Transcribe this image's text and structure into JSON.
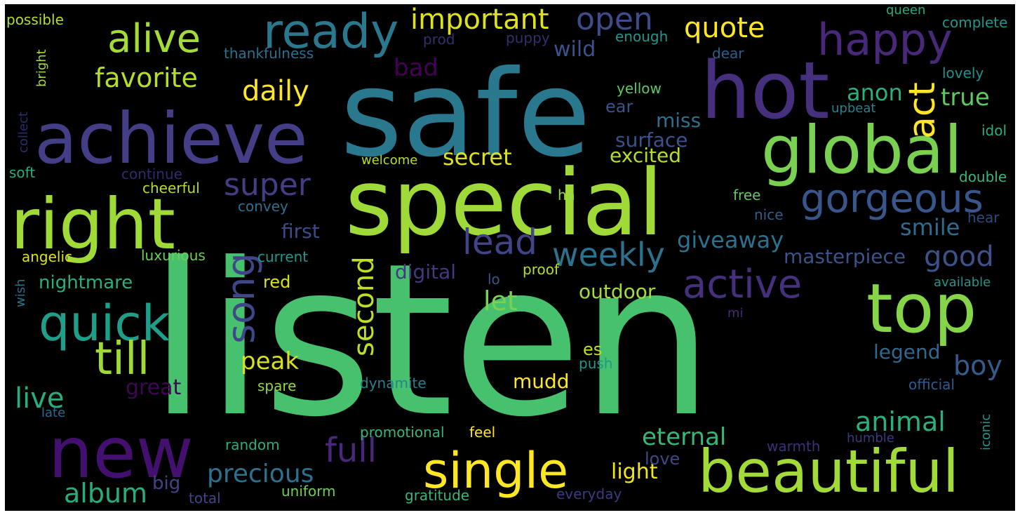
{
  "wordcloud": {
    "background": "#000000",
    "colormap": "viridis",
    "words": [
      {
        "text": "listen",
        "color": "#47c16e"
      },
      {
        "text": "safe",
        "color": "#2a788e"
      },
      {
        "text": "special",
        "color": "#a0da39"
      },
      {
        "text": "hot",
        "color": "#46307e"
      },
      {
        "text": "achieve",
        "color": "#433e85"
      },
      {
        "text": "right",
        "color": "#a0da39"
      },
      {
        "text": "global",
        "color": "#7ad151"
      },
      {
        "text": "top",
        "color": "#86d549"
      },
      {
        "text": "new",
        "color": "#44106f"
      },
      {
        "text": "beautiful",
        "color": "#a2da37"
      },
      {
        "text": "single",
        "color": "#fde725"
      },
      {
        "text": "quick",
        "color": "#1f9e89"
      },
      {
        "text": "ready",
        "color": "#2a788e"
      },
      {
        "text": "happy",
        "color": "#482878"
      },
      {
        "text": "alive",
        "color": "#a5db36"
      },
      {
        "text": "gorgeous",
        "color": "#39568c"
      },
      {
        "text": "till",
        "color": "#a0da39"
      },
      {
        "text": "active",
        "color": "#46307e"
      },
      {
        "text": "song",
        "color": "#3f4788"
      },
      {
        "text": "act",
        "color": "#fde725"
      },
      {
        "text": "lead",
        "color": "#414487"
      },
      {
        "text": "weekly",
        "color": "#2c728e"
      },
      {
        "text": "super",
        "color": "#433e85"
      },
      {
        "text": "important",
        "color": "#dde318"
      },
      {
        "text": "open",
        "color": "#3e4c8a"
      },
      {
        "text": "quote",
        "color": "#fde725"
      },
      {
        "text": "favorite",
        "color": "#b5de2b"
      },
      {
        "text": "daily",
        "color": "#fde725"
      },
      {
        "text": "full",
        "color": "#482878"
      },
      {
        "text": "animal",
        "color": "#2ab07f"
      },
      {
        "text": "second",
        "color": "#bddf26"
      },
      {
        "text": "live",
        "color": "#27ad81"
      },
      {
        "text": "album",
        "color": "#26ad81"
      },
      {
        "text": "precious",
        "color": "#2c728e"
      },
      {
        "text": "good",
        "color": "#3b528b"
      },
      {
        "text": "boy",
        "color": "#365c8d"
      },
      {
        "text": "eternal",
        "color": "#35b779"
      },
      {
        "text": "peak",
        "color": "#d8e219"
      },
      {
        "text": "let",
        "color": "#7ad151"
      },
      {
        "text": "secret",
        "color": "#dde318"
      },
      {
        "text": "giveaway",
        "color": "#2c728e"
      },
      {
        "text": "true",
        "color": "#5ec962"
      },
      {
        "text": "anon",
        "color": "#2ab07f"
      },
      {
        "text": "smile",
        "color": "#2f6c8e"
      },
      {
        "text": "bad",
        "color": "#440154"
      },
      {
        "text": "wild",
        "color": "#3b528b"
      },
      {
        "text": "nightmare",
        "color": "#29af7f"
      },
      {
        "text": "outdoor",
        "color": "#a5db36"
      },
      {
        "text": "masterpiece",
        "color": "#3b528b"
      },
      {
        "text": "great",
        "color": "#3e0751"
      },
      {
        "text": "first",
        "color": "#3e4989"
      },
      {
        "text": "excited",
        "color": "#b5de2b"
      },
      {
        "text": "surface",
        "color": "#3b528b"
      },
      {
        "text": "miss",
        "color": "#2c728e"
      },
      {
        "text": "light",
        "color": "#f1e51d"
      },
      {
        "text": "legend",
        "color": "#31688e"
      },
      {
        "text": "mudd",
        "color": "#fde725"
      },
      {
        "text": "digital",
        "color": "#453781"
      },
      {
        "text": "love",
        "color": "#3e4989"
      },
      {
        "text": "big",
        "color": "#414487"
      },
      {
        "text": "red",
        "color": "#d8e219"
      },
      {
        "text": "ear",
        "color": "#3b528b"
      },
      {
        "text": "es",
        "color": "#bddf26"
      },
      {
        "text": "yellow",
        "color": "#5ec962"
      },
      {
        "text": "cheerful",
        "color": "#b5de2b"
      },
      {
        "text": "continue",
        "color": "#2c2d6c"
      },
      {
        "text": "convey",
        "color": "#2d708e"
      },
      {
        "text": "luxurious",
        "color": "#6ece58"
      },
      {
        "text": "current",
        "color": "#1f988b"
      },
      {
        "text": "angelic",
        "color": "#dde318"
      },
      {
        "text": "welcome",
        "color": "#b5de2b"
      },
      {
        "text": "thankfulness",
        "color": "#2d708e"
      },
      {
        "text": "enough",
        "color": "#1f988b"
      },
      {
        "text": "prod",
        "color": "#31306b"
      },
      {
        "text": "puppy",
        "color": "#31306b"
      },
      {
        "text": "dear",
        "color": "#2e5e8b"
      },
      {
        "text": "upbeat",
        "color": "#26828e"
      },
      {
        "text": "lovely",
        "color": "#21918c"
      },
      {
        "text": "idol",
        "color": "#2ab07f"
      },
      {
        "text": "double",
        "color": "#35b779"
      },
      {
        "text": "hear",
        "color": "#2c4a7e"
      },
      {
        "text": "available",
        "color": "#1f988b"
      },
      {
        "text": "official",
        "color": "#2f5b8e"
      },
      {
        "text": "iconic",
        "color": "#1f988b"
      },
      {
        "text": "humble",
        "color": "#3b3a7d"
      },
      {
        "text": "warmth",
        "color": "#3e2f7a"
      },
      {
        "text": "everyday",
        "color": "#3b3a85"
      },
      {
        "text": "gratitude",
        "color": "#35b779"
      },
      {
        "text": "uniform",
        "color": "#6ece58"
      },
      {
        "text": "total",
        "color": "#414487"
      },
      {
        "text": "random",
        "color": "#29af7f"
      },
      {
        "text": "promotional",
        "color": "#35b779"
      },
      {
        "text": "feel",
        "color": "#fde725"
      },
      {
        "text": "dynamite",
        "color": "#26828e"
      },
      {
        "text": "push",
        "color": "#1f988b"
      },
      {
        "text": "spare",
        "color": "#8fd744"
      },
      {
        "text": "proof",
        "color": "#b5de2b"
      },
      {
        "text": "lo",
        "color": "#3b528b"
      },
      {
        "text": "mi",
        "color": "#482878"
      },
      {
        "text": "free",
        "color": "#5ec962"
      },
      {
        "text": "ha",
        "color": "#8fd744"
      },
      {
        "text": "nice",
        "color": "#2e5e8b"
      },
      {
        "text": "possible",
        "color": "#b5de2b"
      },
      {
        "text": "bright",
        "color": "#a5db36"
      },
      {
        "text": "collect",
        "color": "#2c2d6c"
      },
      {
        "text": "soft",
        "color": "#29af7f"
      },
      {
        "text": "wish",
        "color": "#2c728e"
      },
      {
        "text": "late",
        "color": "#31688e"
      },
      {
        "text": "queen",
        "color": "#27ad81"
      },
      {
        "text": "complete",
        "color": "#1f988b"
      }
    ]
  }
}
